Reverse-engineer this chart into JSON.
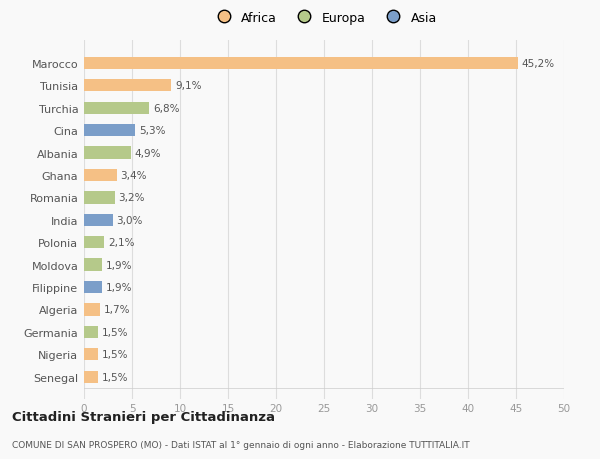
{
  "categories": [
    "Senegal",
    "Nigeria",
    "Germania",
    "Algeria",
    "Filippine",
    "Moldova",
    "Polonia",
    "India",
    "Romania",
    "Ghana",
    "Albania",
    "Cina",
    "Turchia",
    "Tunisia",
    "Marocco"
  ],
  "values": [
    1.5,
    1.5,
    1.5,
    1.7,
    1.9,
    1.9,
    2.1,
    3.0,
    3.2,
    3.4,
    4.9,
    5.3,
    6.8,
    9.1,
    45.2
  ],
  "labels": [
    "1,5%",
    "1,5%",
    "1,5%",
    "1,7%",
    "1,9%",
    "1,9%",
    "2,1%",
    "3,0%",
    "3,2%",
    "3,4%",
    "4,9%",
    "5,3%",
    "6,8%",
    "9,1%",
    "45,2%"
  ],
  "continent": [
    "Africa",
    "Africa",
    "Europa",
    "Africa",
    "Asia",
    "Europa",
    "Europa",
    "Asia",
    "Europa",
    "Africa",
    "Europa",
    "Asia",
    "Europa",
    "Africa",
    "Africa"
  ],
  "legend_labels": [
    "Africa",
    "Europa",
    "Asia"
  ],
  "legend_colors": [
    "#f5c085",
    "#b5c98a",
    "#7b9ec9"
  ],
  "title": "Cittadini Stranieri per Cittadinanza",
  "subtitle": "COMUNE DI SAN PROSPERO (MO) - Dati ISTAT al 1° gennaio di ogni anno - Elaborazione TUTTITALIA.IT",
  "xlim": [
    0,
    50
  ],
  "xticks": [
    0,
    5,
    10,
    15,
    20,
    25,
    30,
    35,
    40,
    45,
    50
  ],
  "background_color": "#f9f9f9",
  "bar_color_africa": "#f5c085",
  "bar_color_europa": "#b5c98a",
  "bar_color_asia": "#7b9ec9"
}
